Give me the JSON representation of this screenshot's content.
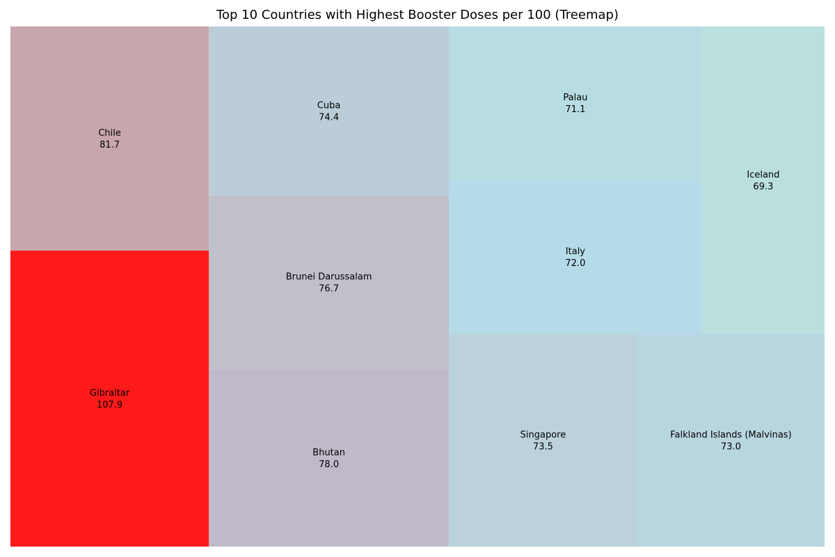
{
  "chart_data": {
    "type": "treemap",
    "title": "Top 10 Countries with Highest Booster Doses per 100 (Treemap)",
    "categories": [
      "Gibraltar",
      "Chile",
      "Bhutan",
      "Brunei Darussalam",
      "Cuba",
      "Singapore",
      "Falkland Islands (Malvinas)",
      "Italy",
      "Palau",
      "Iceland"
    ],
    "values": [
      107.9,
      81.7,
      78.0,
      76.7,
      74.4,
      73.5,
      73.0,
      72.0,
      71.1,
      69.3
    ],
    "value_labels": [
      "107.9",
      "81.7",
      "78.0",
      "76.7",
      "74.4",
      "73.5",
      "73.0",
      "72.0",
      "71.1",
      "69.3"
    ],
    "colors": [
      "#ff1a1a",
      "#c8a6ae",
      "#c1b9c9",
      "#c0c0cb",
      "#bbcdd8",
      "#bbd2dc",
      "#b8d6e0",
      "#b5dbe8",
      "#b8dce3",
      "#bbdfdc"
    ],
    "axes": "off",
    "grid": false,
    "legend": "none"
  }
}
